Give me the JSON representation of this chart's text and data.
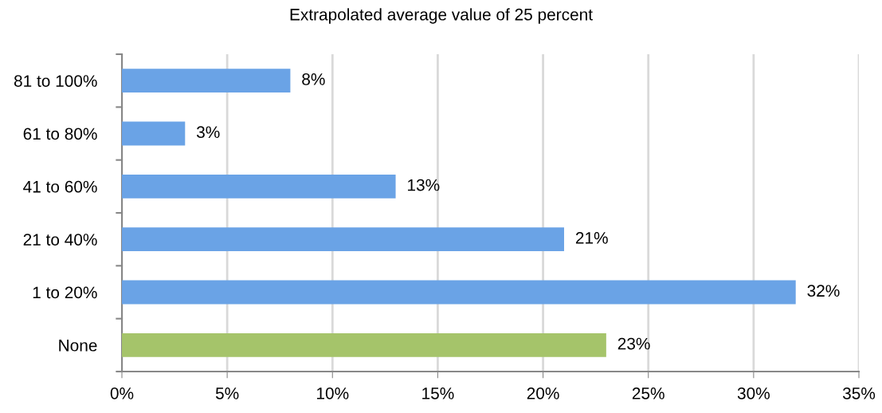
{
  "chart_data": {
    "type": "bar",
    "orientation": "horizontal",
    "title": "Extrapolated average value of 25 percent",
    "categories": [
      "81 to 100%",
      "61 to 80%",
      "41 to 60%",
      "21 to 40%",
      "1 to 20%",
      "None"
    ],
    "values": [
      8,
      3,
      13,
      21,
      32,
      23
    ],
    "colors": [
      "#6aa3e6",
      "#6aa3e6",
      "#6aa3e6",
      "#6aa3e6",
      "#6aa3e6",
      "#a5c46a"
    ],
    "value_labels": [
      "8%",
      "3%",
      "13%",
      "21%",
      "32%",
      "23%"
    ],
    "xlim": [
      0,
      35
    ],
    "xticks": [
      {
        "value": 0,
        "label": "0%"
      },
      {
        "value": 5,
        "label": "5%"
      },
      {
        "value": 10,
        "label": "10%"
      },
      {
        "value": 15,
        "label": "15%"
      },
      {
        "value": 20,
        "label": "20%"
      },
      {
        "value": 25,
        "label": "25%"
      },
      {
        "value": 30,
        "label": "30%"
      },
      {
        "value": 35,
        "label": "35%"
      }
    ],
    "grid": "x"
  }
}
